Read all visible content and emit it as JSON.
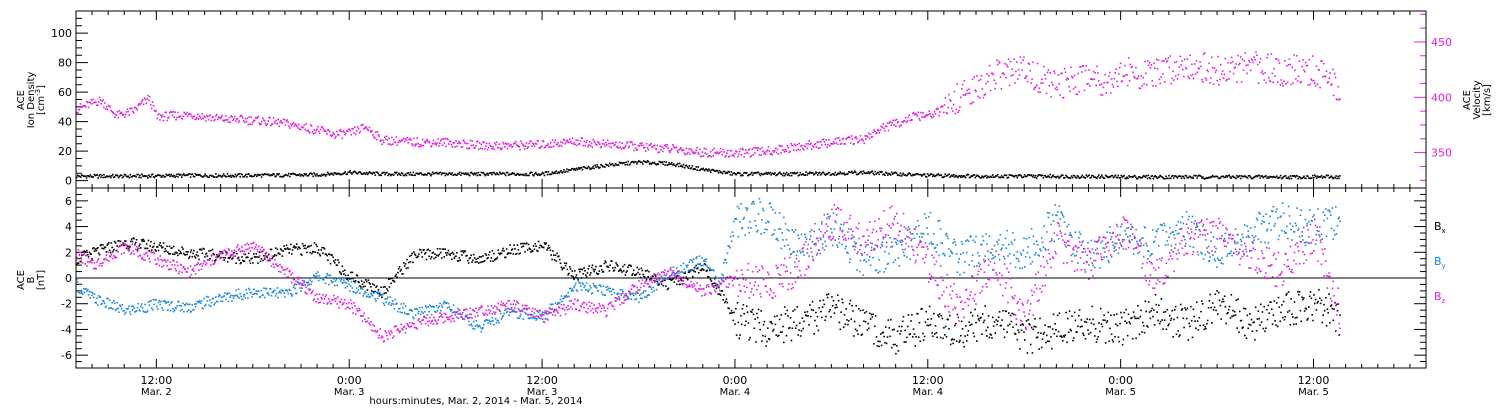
{
  "colors": {
    "black": "#000000",
    "magenta": "#e020e0",
    "blue": "#1a88dd",
    "axis_right": "#e020e0"
  },
  "footer": {
    "axis_title": "hours:minutes, Mar. 2, 2014 - Mar. 5, 2014"
  },
  "time_axis": {
    "range_hours": [
      7.0,
      91.0
    ],
    "major_ticks": [
      {
        "hour": 12,
        "time": "12:00",
        "date": "Mar. 2"
      },
      {
        "hour": 24,
        "time": "0:00",
        "date": "Mar. 3"
      },
      {
        "hour": 36,
        "time": "12:00",
        "date": "Mar. 3"
      },
      {
        "hour": 48,
        "time": "0:00",
        "date": "Mar. 4"
      },
      {
        "hour": 60,
        "time": "12:00",
        "date": "Mar. 4"
      },
      {
        "hour": 72,
        "time": "0:00",
        "date": "Mar. 5"
      },
      {
        "hour": 84,
        "time": "12:00",
        "date": "Mar. 5"
      }
    ]
  },
  "chart_data": [
    {
      "type": "scatter",
      "panel": "top",
      "left_axis": {
        "label": [
          "ACE",
          "Ion Density"
        ],
        "unit_label": "[cm-3]",
        "ylim": [
          -5,
          115
        ],
        "ticks": [
          0,
          20,
          40,
          60,
          80,
          100
        ]
      },
      "right_axis": {
        "label": [
          "ACE",
          "Velocity"
        ],
        "unit_label": "[km/s]",
        "ylim": [
          318,
          478
        ],
        "ticks": [
          350,
          400,
          450
        ]
      },
      "series": [
        {
          "axis": "left",
          "color": "#000000",
          "x": [
            7.0,
            10,
            14,
            18,
            22,
            24,
            26,
            30,
            34,
            36,
            38,
            40,
            42,
            44,
            46,
            48,
            52,
            56,
            60,
            64,
            68,
            72,
            76,
            80,
            84,
            85.6
          ],
          "y": [
            3.5,
            3.5,
            4,
            4,
            4.5,
            6,
            5,
            5,
            5,
            5,
            8,
            11,
            13,
            12,
            8,
            5,
            5,
            6,
            4,
            3.5,
            3.5,
            3,
            3,
            3,
            3,
            3
          ]
        },
        {
          "axis": "right",
          "color": "#e020e0",
          "x": [
            7.0,
            8.5,
            9.5,
            10.5,
            11.5,
            12,
            14,
            16,
            18,
            20,
            22,
            23,
            24,
            25,
            26,
            28,
            30,
            32,
            34,
            36,
            38,
            40,
            42,
            44,
            46,
            48,
            50,
            52,
            54,
            56,
            57,
            58,
            59,
            60,
            61,
            62,
            63,
            64,
            66,
            68,
            70,
            71,
            72,
            74,
            76,
            78,
            80,
            82,
            84,
            85.6
          ],
          "y": [
            390,
            398,
            384,
            388,
            400,
            383,
            385,
            381,
            380,
            377,
            371,
            367,
            368,
            374,
            362,
            360,
            360,
            357,
            357,
            358,
            361,
            358,
            356,
            354,
            351,
            350,
            352,
            356,
            360,
            363,
            372,
            377,
            383,
            384,
            390,
            402,
            407,
            420,
            425,
            410,
            422,
            415,
            423,
            420,
            432,
            424,
            428,
            425,
            425,
            408
          ]
        }
      ]
    },
    {
      "type": "scatter",
      "panel": "bottom",
      "left_axis": {
        "label": [
          "ACE",
          "B"
        ],
        "unit_label": "[nT]",
        "ylim": [
          -7,
          7
        ],
        "ticks": [
          -6,
          -4,
          -2,
          0,
          2,
          4,
          6
        ]
      },
      "zero_line": true,
      "legend": [
        "Bx",
        "By",
        "Bz"
      ],
      "legend_position": "right",
      "series": [
        {
          "name": "Bx",
          "color": "#000000",
          "x": [
            7.0,
            8,
            10,
            12,
            14,
            16,
            18,
            20,
            22,
            24,
            26,
            28,
            30,
            32,
            34,
            36,
            38,
            40,
            42,
            44,
            46,
            47,
            48,
            50,
            52,
            54,
            56,
            58,
            60,
            62,
            64,
            66,
            68,
            70,
            72,
            74,
            76,
            78,
            80,
            82,
            84,
            85.6
          ],
          "y": [
            1.5,
            2,
            2.8,
            2.5,
            2,
            1.8,
            1.5,
            2.2,
            2.4,
            0.2,
            -1,
            1.8,
            2,
            1.5,
            2.2,
            2.6,
            0.2,
            1,
            0.5,
            -0.5,
            1,
            -1,
            -3.2,
            -4,
            -3.2,
            -2.5,
            -3.5,
            -4.5,
            -3.5,
            -4,
            -3.2,
            -4.5,
            -4,
            -3.5,
            -4,
            -2.5,
            -3.5,
            -2,
            -3.5,
            -2.5,
            -2,
            -3
          ]
        },
        {
          "name": "By",
          "color": "#1a88dd",
          "x": [
            7.0,
            8,
            10,
            12,
            14,
            16,
            18,
            20,
            22,
            24,
            26,
            28,
            30,
            32,
            34,
            36,
            38,
            40,
            42,
            44,
            46,
            47,
            48,
            50,
            52,
            54,
            56,
            58,
            60,
            62,
            64,
            66,
            68,
            70,
            72,
            74,
            76,
            78,
            80,
            82,
            84,
            85.6
          ],
          "y": [
            -0.5,
            -1.5,
            -2.5,
            -2,
            -2.2,
            -1.5,
            -1,
            -1.2,
            0.2,
            -0.5,
            -1.5,
            -2.8,
            -2,
            -3.8,
            -2.5,
            -3,
            -0.5,
            -1,
            -1.5,
            0.5,
            1.5,
            -0.5,
            4.5,
            5,
            2,
            4,
            1.5,
            2,
            4,
            1.5,
            3,
            2,
            4.5,
            1.5,
            3,
            2.5,
            4,
            2,
            3.5,
            4.5,
            4,
            4.5
          ]
        },
        {
          "name": "Bz",
          "color": "#e020e0",
          "x": [
            7.0,
            8,
            10,
            12,
            14,
            16,
            18,
            20,
            22,
            24,
            26,
            28,
            30,
            32,
            34,
            36,
            38,
            40,
            42,
            44,
            46,
            47,
            48,
            50,
            52,
            54,
            56,
            58,
            60,
            62,
            64,
            66,
            68,
            70,
            72,
            74,
            76,
            78,
            80,
            82,
            84,
            85.6
          ],
          "y": [
            2,
            1,
            2.5,
            1.5,
            0.5,
            1.8,
            2.6,
            0.5,
            -1.5,
            -2,
            -4.5,
            -3.5,
            -3,
            -2.5,
            -2,
            -3,
            -2,
            -2.5,
            -0.5,
            0.5,
            -1,
            -0.5,
            0,
            -0.5,
            1,
            4.5,
            3,
            4.5,
            1,
            -2.5,
            1.5,
            -3,
            3,
            1,
            4,
            0,
            3,
            3.5,
            2,
            0.5,
            3.5,
            -2.5
          ]
        }
      ]
    }
  ]
}
